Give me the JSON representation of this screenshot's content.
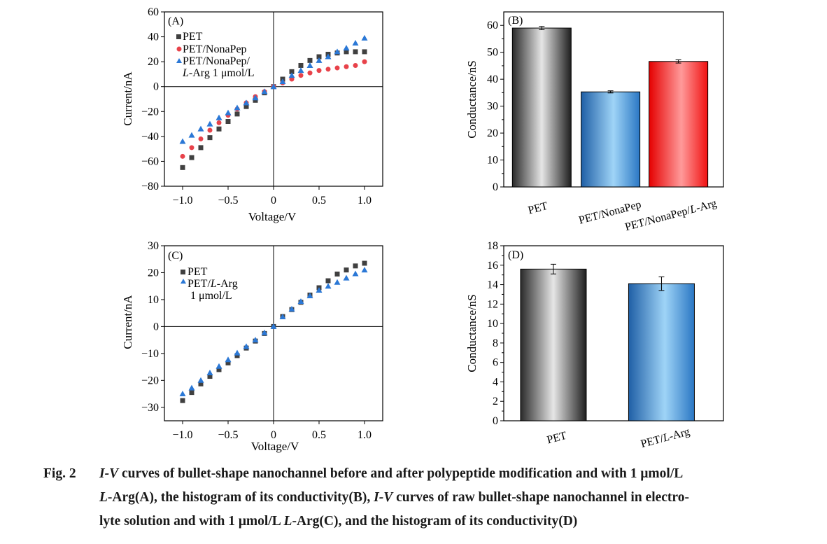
{
  "chart_data": [
    {
      "panel": "(A)",
      "type": "scatter",
      "xlabel": "Voltage/V",
      "ylabel": "Current/nA",
      "xlim": [
        -1.2,
        1.2
      ],
      "ylim": [
        -80,
        60
      ],
      "xticks": [
        -1.0,
        -0.5,
        0,
        0.5,
        1.0
      ],
      "xtick_labels": [
        "−1.0",
        "−0.5",
        "0",
        "0.5",
        "1.0"
      ],
      "yticks": [
        -80,
        -60,
        -40,
        -20,
        0,
        20,
        40,
        60
      ],
      "ytick_labels": [
        "−80",
        "−60",
        "−40",
        "−20",
        "0",
        "20",
        "40",
        "60"
      ],
      "legend_position": "top-left",
      "series": [
        {
          "name": "PET",
          "marker": "square",
          "color": "#404040",
          "x": [
            -1.0,
            -0.9,
            -0.8,
            -0.7,
            -0.6,
            -0.5,
            -0.4,
            -0.3,
            -0.2,
            -0.1,
            0,
            0.1,
            0.2,
            0.3,
            0.4,
            0.5,
            0.6,
            0.7,
            0.8,
            0.9,
            1.0
          ],
          "y": [
            -65,
            -57,
            -49,
            -41,
            -34,
            -28,
            -22,
            -16,
            -11,
            -5,
            0,
            6,
            12,
            17,
            21,
            24,
            26,
            27,
            28,
            28,
            28
          ]
        },
        {
          "name": "PET/NonaPep",
          "marker": "circle",
          "color": "#e8424a",
          "x": [
            -1.0,
            -0.9,
            -0.8,
            -0.7,
            -0.6,
            -0.5,
            -0.4,
            -0.3,
            -0.2,
            -0.1,
            0,
            0.1,
            0.2,
            0.3,
            0.4,
            0.5,
            0.6,
            0.7,
            0.8,
            0.9,
            1.0
          ],
          "y": [
            -56,
            -49,
            -42,
            -35,
            -29,
            -23,
            -18,
            -13,
            -8,
            -4,
            0,
            3,
            6,
            9,
            11,
            13,
            14,
            15,
            16,
            17,
            20
          ]
        },
        {
          "name": "PET/NonaPep/ L-Arg 1 μmol/L",
          "marker": "triangle",
          "color": "#2b78d6",
          "x": [
            -1.0,
            -0.9,
            -0.8,
            -0.7,
            -0.6,
            -0.5,
            -0.4,
            -0.3,
            -0.2,
            -0.1,
            0,
            0.1,
            0.2,
            0.3,
            0.4,
            0.5,
            0.6,
            0.7,
            0.8,
            0.9,
            1.0
          ],
          "y": [
            -44,
            -39,
            -34,
            -30,
            -25,
            -21,
            -17,
            -13,
            -9,
            -4,
            0,
            4,
            9,
            13,
            17,
            21,
            24,
            28,
            31,
            35,
            39
          ]
        }
      ]
    },
    {
      "panel": "(B)",
      "type": "bar",
      "ylabel": "Conductance/nS",
      "ylim": [
        0,
        65
      ],
      "yticks": [
        0,
        10,
        20,
        30,
        40,
        50,
        60
      ],
      "categories": [
        "PET",
        "PET/NonaPep",
        "PET/NonaPep/L-Arg"
      ],
      "values": [
        59,
        35.3,
        46.6
      ],
      "errors": [
        0.6,
        0.4,
        0.6
      ],
      "colors": [
        "#666666",
        "#3a8fd6",
        "#f24a4a"
      ]
    },
    {
      "panel": "(C)",
      "type": "scatter",
      "xlabel": "Voltage/V",
      "ylabel": "Current/nA",
      "xlim": [
        -1.2,
        1.2
      ],
      "ylim": [
        -35,
        30
      ],
      "xticks": [
        -1.0,
        -0.5,
        0,
        0.5,
        1.0
      ],
      "xtick_labels": [
        "−1.0",
        "−0.5",
        "0",
        "0.5",
        "1.0"
      ],
      "yticks": [
        -30,
        -20,
        -10,
        0,
        10,
        20,
        30
      ],
      "ytick_labels": [
        "−30",
        "−20",
        "−10",
        "0",
        "10",
        "20",
        "30"
      ],
      "legend_position": "top-left",
      "series": [
        {
          "name": "PET",
          "marker": "square",
          "color": "#404040",
          "x": [
            -1.0,
            -0.9,
            -0.8,
            -0.7,
            -0.6,
            -0.5,
            -0.4,
            -0.3,
            -0.2,
            -0.1,
            0,
            0.1,
            0.2,
            0.3,
            0.4,
            0.5,
            0.6,
            0.7,
            0.8,
            0.9,
            1.0
          ],
          "y": [
            -27.5,
            -24.5,
            -21.3,
            -18.5,
            -16,
            -13.5,
            -10.8,
            -8,
            -5.4,
            -2.6,
            0,
            3.7,
            6.3,
            9,
            11.7,
            14.4,
            17,
            19.5,
            21,
            22.5,
            23.5
          ]
        },
        {
          "name": "PET/L-Arg 1 μmol/L",
          "marker": "triangle",
          "color": "#2b78d6",
          "x": [
            -1.0,
            -0.9,
            -0.8,
            -0.7,
            -0.6,
            -0.5,
            -0.4,
            -0.3,
            -0.2,
            -0.1,
            0,
            0.1,
            0.2,
            0.3,
            0.4,
            0.5,
            0.6,
            0.7,
            0.8,
            0.9,
            1.0
          ],
          "y": [
            -25,
            -22.8,
            -20,
            -17.2,
            -14.8,
            -12.3,
            -9.8,
            -7.4,
            -5,
            -2.3,
            0,
            3.6,
            6.5,
            9.3,
            11.4,
            13.5,
            15,
            16.4,
            18,
            19.6,
            21
          ]
        }
      ]
    },
    {
      "panel": "(D)",
      "type": "bar",
      "ylabel": "Conductance/nS",
      "ylim": [
        0,
        18
      ],
      "yticks": [
        0,
        2,
        4,
        6,
        8,
        10,
        12,
        14,
        16,
        18
      ],
      "categories": [
        "PET",
        "PET/L-Arg"
      ],
      "values": [
        15.6,
        14.1
      ],
      "errors": [
        0.5,
        0.7
      ],
      "colors": [
        "#666666",
        "#3a8fd6"
      ]
    }
  ],
  "panelA": {
    "label": "(A)",
    "xlabel": "Voltage/V",
    "ylabel": "Current/nA",
    "legend": {
      "pet": "PET",
      "nona": "PET/NonaPep",
      "arg_line1": "PET/NonaPep/",
      "arg_italic": "L",
      "arg_line2": "-Arg 1 μmol/L"
    }
  },
  "panelB": {
    "label": "(B)",
    "ylabel": "Conductance/nS",
    "cat1": "PET",
    "cat2": "PET/NonaPep",
    "cat3_prefix": "PET/NonaPep/",
    "cat3_italic": "L",
    "cat3_suffix": "-Arg"
  },
  "panelC": {
    "label": "(C)",
    "xlabel": "Voltage/V",
    "ylabel": "Current/nA",
    "legend": {
      "pet": "PET",
      "arg_prefix": "PET/",
      "arg_italic": "L",
      "arg_suffix": "-Arg",
      "arg_line2": "1 μmol/L"
    }
  },
  "panelD": {
    "label": "(D)",
    "ylabel": "Conductance/nS",
    "cat1": "PET",
    "cat2_prefix": "PET/",
    "cat2_italic": "L",
    "cat2_suffix": "-Arg"
  },
  "caption": {
    "fig_label": "Fig. 2",
    "line1_iv": "I-V",
    "line1_rest": " curves of bullet-shape nanochannel before and after polypeptide modification and with 1 μmol/L",
    "line2_l": "L",
    "line2_rest1": "-Arg(A), the histogram of its conductivity(B), ",
    "line2_iv": "I-V",
    "line2_rest2": " curves of raw bullet-shape nanochannel in electro-",
    "line3_rest1": "lyte solution and with 1 μmol/L ",
    "line3_l": "L",
    "line3_rest2": "-Arg(C), and the histogram of its conductivity(D)"
  }
}
